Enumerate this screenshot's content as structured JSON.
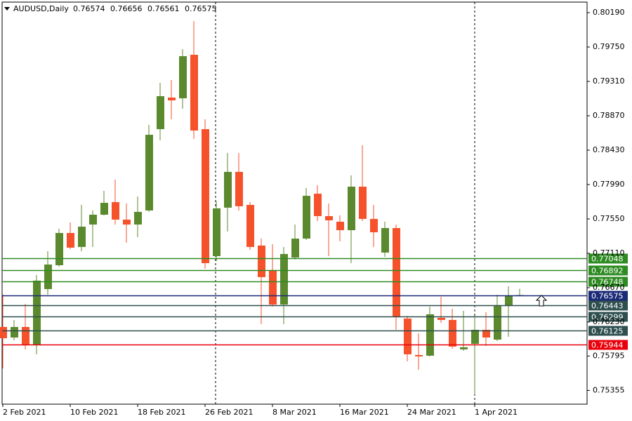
{
  "chart_data": {
    "type": "candlestick",
    "title": "AUDUSD,Daily",
    "categories": [
      "2 Feb 2021",
      null,
      null,
      null,
      null,
      null,
      "10 Feb 2021",
      null,
      null,
      null,
      null,
      null,
      "18 Feb 2021",
      null,
      null,
      null,
      null,
      null,
      "26 Feb 2021",
      null,
      null,
      null,
      null,
      null,
      "8 Mar 2021",
      null,
      null,
      null,
      null,
      null,
      "16 Mar 2021",
      null,
      null,
      null,
      null,
      null,
      "24 Mar 2021",
      null,
      null,
      null,
      null,
      null,
      "1 Apr 2021",
      null,
      null,
      null,
      null
    ],
    "open": [
      0.76167,
      0.76032,
      0.76167,
      0.75942,
      0.76652,
      0.76957,
      0.7737,
      0.77191,
      0.77478,
      0.77604,
      0.77765,
      0.77541,
      0.77478,
      0.77658,
      0.78699,
      0.79103,
      0.79094,
      0.79651,
      0.78699,
      0.77074,
      0.77694,
      0.78152,
      0.77729,
      0.77209,
      0.76894,
      0.76454,
      0.77056,
      0.77298,
      0.77873,
      0.77586,
      0.77514,
      0.77406,
      0.77963,
      0.7755,
      0.77119,
      0.77433,
      0.76275,
      0.75808,
      0.75799,
      0.76284,
      0.76257,
      0.7588,
      0.75951,
      0.76131,
      0.76005,
      0.76436,
      0.76574
    ],
    "high": [
      0.7658,
      0.76257,
      0.76463,
      0.76831,
      0.77137,
      0.77424,
      0.77505,
      0.77729,
      0.77658,
      0.77909,
      0.78053,
      0.77747,
      0.77837,
      0.78753,
      0.79292,
      0.79328,
      0.79723,
      0.80082,
      0.78825,
      0.77774,
      0.78394,
      0.78394,
      0.77765,
      0.77298,
      0.77227,
      0.77191,
      0.77478,
      0.77945,
      0.77981,
      0.77747,
      0.77595,
      0.78107,
      0.78493,
      0.77729,
      0.77514,
      0.77478,
      0.76311,
      0.76086,
      0.76427,
      0.76553,
      0.764,
      0.76373,
      0.76311,
      0.76356,
      0.7658,
      0.76688,
      0.76656
    ],
    "low": [
      0.75637,
      0.75996,
      0.7588,
      0.75817,
      0.7658,
      0.76939,
      0.77164,
      0.77137,
      0.77191,
      0.77595,
      0.77478,
      0.77245,
      0.77316,
      0.7764,
      0.78556,
      0.78825,
      0.7896,
      0.78574,
      0.76912,
      0.77011,
      0.77388,
      0.77658,
      0.77155,
      0.76203,
      0.76427,
      0.76203,
      0.77029,
      0.7728,
      0.77523,
      0.77074,
      0.77263,
      0.76984,
      0.77523,
      0.77191,
      0.77065,
      0.76131,
      0.75727,
      0.75619,
      0.7579,
      0.76221,
      0.75889,
      0.75862,
      0.75305,
      0.75924,
      0.75987,
      0.76041,
      0.76561
    ],
    "close": [
      0.76023,
      0.76167,
      0.75942,
      0.7676,
      0.76966,
      0.7737,
      0.77182,
      0.77451,
      0.77604,
      0.77756,
      0.77541,
      0.77478,
      0.7764,
      0.78627,
      0.79121,
      0.79067,
      0.79633,
      0.78681,
      0.76984,
      0.77685,
      0.78152,
      0.77712,
      0.77191,
      0.76805,
      0.76454,
      0.77101,
      0.77298,
      0.77846,
      0.77586,
      0.77532,
      0.77406,
      0.77963,
      0.7755,
      0.77379,
      0.77433,
      0.76293,
      0.75817,
      0.7579,
      0.76329,
      0.76257,
      0.75916,
      0.75907,
      0.76131,
      0.76032,
      0.76436,
      0.76571,
      0.76575
    ],
    "up_color": "#5b8a2e",
    "down_color": "#f5522b",
    "levels": [
      {
        "value": 0.77048,
        "color": "#2e8b22"
      },
      {
        "value": 0.76892,
        "color": "#2e8b22"
      },
      {
        "value": 0.76748,
        "color": "#2e8b22"
      },
      {
        "value": 0.76575,
        "color": "#1b2a78"
      },
      {
        "value": 0.76443,
        "color": "#2f4f4f"
      },
      {
        "value": 0.76299,
        "color": "#2f4f4f"
      },
      {
        "value": 0.76125,
        "color": "#2f4f4f"
      },
      {
        "value": 0.75944,
        "color": "#e8000b"
      }
    ],
    "ylim": [
      0.75179,
      0.80325
    ],
    "yticks": [
      {
        "value": 0.8019,
        "label": "0.80190"
      },
      {
        "value": 0.7975,
        "label": "0.79750"
      },
      {
        "value": 0.7931,
        "label": "0.79310"
      },
      {
        "value": 0.7887,
        "label": "0.78870"
      },
      {
        "value": 0.7843,
        "label": "0.78430"
      },
      {
        "value": 0.7799,
        "label": "0.77990"
      },
      {
        "value": 0.7755,
        "label": "0.77550"
      },
      {
        "value": 0.7711,
        "label": "0.77110"
      },
      {
        "value": 0.7667,
        "label": "0.76670"
      },
      {
        "value": 0.7623,
        "label": "0.76230"
      },
      0.75795,
      0.75355
    ]
  }
}
